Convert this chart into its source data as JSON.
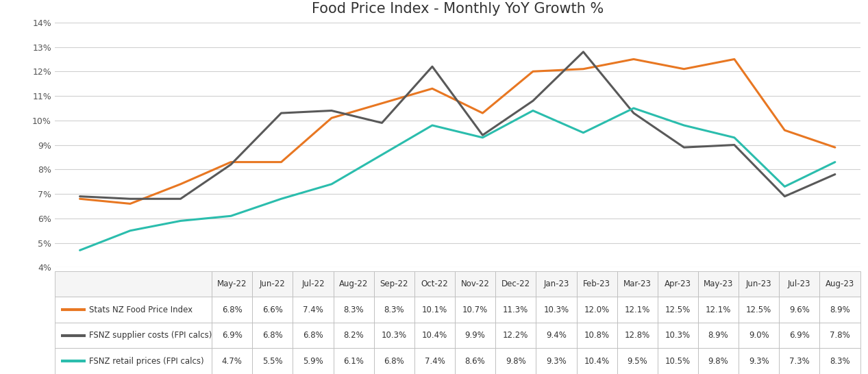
{
  "title": "Food Price Index - Monthly YoY Growth %",
  "categories": [
    "May-22",
    "Jun-22",
    "Jul-22",
    "Aug-22",
    "Sep-22",
    "Oct-22",
    "Nov-22",
    "Dec-22",
    "Jan-23",
    "Feb-23",
    "Mar-23",
    "Apr-23",
    "May-23",
    "Jun-23",
    "Jul-23",
    "Aug-23"
  ],
  "series": [
    {
      "label": "Stats NZ Food Price Index",
      "color": "#E87722",
      "linewidth": 2.2,
      "values": [
        6.8,
        6.6,
        7.4,
        8.3,
        8.3,
        10.1,
        10.7,
        11.3,
        10.3,
        12.0,
        12.1,
        12.5,
        12.1,
        12.5,
        9.6,
        8.9
      ]
    },
    {
      "label": "FSNZ supplier costs (FPI calcs)",
      "color": "#595959",
      "linewidth": 2.2,
      "values": [
        6.9,
        6.8,
        6.8,
        8.2,
        10.3,
        10.4,
        9.9,
        12.2,
        9.4,
        10.8,
        12.8,
        10.3,
        8.9,
        9.0,
        6.9,
        7.8
      ]
    },
    {
      "label": "FSNZ retail prices (FPI calcs)",
      "color": "#2BBDAD",
      "linewidth": 2.2,
      "values": [
        4.7,
        5.5,
        5.9,
        6.1,
        6.8,
        7.4,
        8.6,
        9.8,
        9.3,
        10.4,
        9.5,
        10.5,
        9.8,
        9.3,
        7.3,
        8.3
      ]
    }
  ],
  "ylim_low": 4.0,
  "ylim_high": 14.0,
  "ytick_vals": [
    4,
    5,
    6,
    7,
    8,
    9,
    10,
    11,
    12,
    13,
    14
  ],
  "yticklabels": [
    "4%",
    "5%",
    "6%",
    "7%",
    "8%",
    "9%",
    "10%",
    "11%",
    "12%",
    "13%",
    "14%"
  ],
  "bg_color": "#FFFFFF",
  "grid_color": "#D0D0D0",
  "border_color": "#BBBBBB",
  "header_bg": "#F5F5F5",
  "row_bg": [
    "#FFFFFF",
    "#FFFFFF",
    "#FFFFFF"
  ],
  "title_fontsize": 15,
  "axis_fontsize": 9,
  "table_fontsize": 8.5
}
